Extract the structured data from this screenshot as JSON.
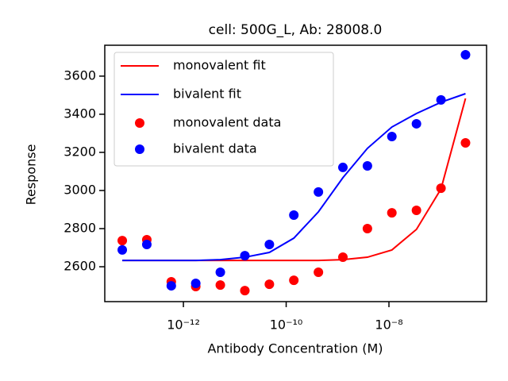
{
  "chart_data": {
    "type": "scatter",
    "title": "cell: 500G_L, Ab: 28008.0",
    "x_label": "Antibody Concentration (M)",
    "y_label": "Response",
    "x_scale": "log",
    "legend": "upper left",
    "x": [
      6.46e-14,
      1.94e-13,
      5.81e-13,
      1.74e-12,
      5.23e-12,
      1.57e-11,
      4.71e-11,
      1.41e-10,
      4.24e-10,
      1.27e-09,
      3.81e-09,
      1.14e-08,
      3.43e-08,
      1.03e-07,
      3.09e-07
    ],
    "series": [
      {
        "name": "monovalent fit",
        "color": "#ff0000",
        "style": "line",
        "values": [
          2633,
          2633,
          2633,
          2633,
          2633,
          2633,
          2633,
          2633,
          2633,
          2637,
          2650,
          2688,
          2796,
          3008,
          3483
        ]
      },
      {
        "name": "bivalent fit",
        "color": "#0000ff",
        "style": "line",
        "values": [
          2633,
          2633,
          2633,
          2633,
          2637,
          2650,
          2675,
          2750,
          2888,
          3067,
          3221,
          3333,
          3404,
          3463,
          3508
        ]
      },
      {
        "name": "monovalent data",
        "color": "#ff0000",
        "style": "marker",
        "values": [
          2737,
          2742,
          2521,
          2496,
          2504,
          2475,
          2508,
          2529,
          2571,
          2650,
          2800,
          2883,
          2896,
          3012,
          3250
        ]
      },
      {
        "name": "bivalent data",
        "color": "#0000ff",
        "style": "marker",
        "values": [
          2688,
          2717,
          2500,
          2513,
          2571,
          2658,
          2717,
          2871,
          2992,
          3121,
          3129,
          3283,
          3350,
          3475,
          3712
        ]
      }
    ],
    "xlim": [
      2.95e-14,
      7.94e-07
    ],
    "xticks": [
      {
        "value": 1e-12,
        "label": "10⁻¹²"
      },
      {
        "value": 1e-10,
        "label": "10⁻¹⁰"
      },
      {
        "value": 1e-08,
        "label": "10⁻⁸"
      }
    ],
    "ylim": [
      2417,
      3762
    ],
    "yticks": [
      2600,
      2800,
      3000,
      3200,
      3400,
      3600
    ]
  }
}
